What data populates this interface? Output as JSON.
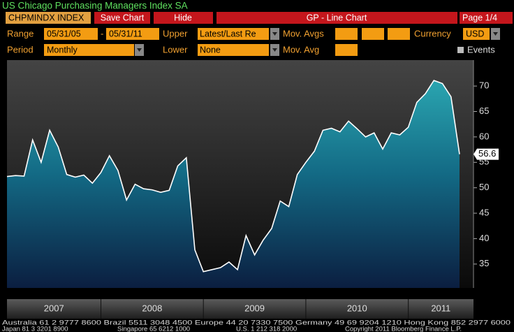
{
  "header": {
    "title": "US Chicago Purchasing Managers Index SA",
    "ticker": "CHPMINDX INDEX",
    "save": "Save Chart",
    "hide": "Hide",
    "function": "GP - Line Chart",
    "page": "Page 1/4"
  },
  "controls": {
    "range_label": "Range",
    "range_start": "05/31/05",
    "range_sep": "-",
    "range_end": "05/31/11",
    "upper_label": "Upper",
    "upper_value": "Latest/Last Re",
    "mov_avgs_label": "Mov. Avgs",
    "currency_label": "Currency",
    "currency_value": "USD",
    "period_label": "Period",
    "period_value": "Monthly",
    "lower_label": "Lower",
    "lower_value": "None",
    "mov_avg_label": "Mov. Avg",
    "events_label": "Events"
  },
  "chart_data": {
    "type": "area",
    "color": "#ffffff",
    "values": [
      52.2,
      52.4,
      52.3,
      59.4,
      55.0,
      61.3,
      58.0,
      52.6,
      52.1,
      52.5,
      50.9,
      53.0,
      56.3,
      53.4,
      47.6,
      50.7,
      49.8,
      49.6,
      49.1,
      49.5,
      54.3,
      55.9,
      37.8,
      33.5,
      33.9,
      34.3,
      35.4,
      33.9,
      40.6,
      36.8,
      39.7,
      42.0,
      47.4,
      46.3,
      52.6,
      55.0,
      57.2,
      61.3,
      61.7,
      61.0,
      63.1,
      61.6,
      60.0,
      60.8,
      57.6,
      60.8,
      60.4,
      61.9,
      66.8,
      68.5,
      71.1,
      70.5,
      67.9,
      56.6
    ],
    "xlabels": [
      "2007",
      "2008",
      "2009",
      "2010",
      "2011"
    ],
    "ylim": [
      30.3,
      75.1
    ],
    "yticks": [
      35,
      40,
      45,
      50,
      55,
      60,
      65,
      70
    ]
  },
  "footer": {
    "line1": "Australia 61 2 9777 8600 Brazil 5511 3048 4500 Europe 44 20 7330 7500 Germany 49 69 9204 1210 Hong Kong 852 2977 6000",
    "japan": "Japan 81 3 3201 8900",
    "singapore": "Singapore 65 6212 1000",
    "us": "U.S. 1 212 318 2000",
    "copyright": "Copyright 2011 Bloomberg Finance L.P."
  }
}
